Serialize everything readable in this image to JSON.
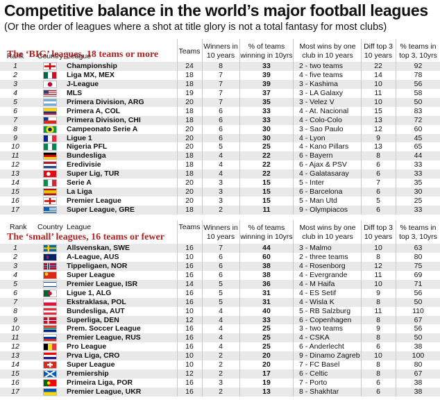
{
  "title": "Competitive balance in the world’s major football leagues",
  "subtitle": "(Or the order of leagues where a shot at title glory is not a total fantasy for most clubs)",
  "headers": {
    "rank": "Rank",
    "country": "Country",
    "league": "League",
    "teams": "Teams",
    "winners_1": "Winners in",
    "winners_2": "10 years",
    "pct_1": "% of teams",
    "pct_2": "winning in 10yrs",
    "most_1": "Most wins by one",
    "most_2": "club in 10 years",
    "diff_1": "Diff top 3",
    "diff_2": "10 years",
    "top3_1": "% teams in",
    "top3_2": "top 3, 10yrs"
  },
  "sections": [
    {
      "label": "The ‘BIG’ leagues, 18 teams or more",
      "rows": [
        {
          "rank": "1",
          "flag": "england",
          "league": "Championship",
          "teams": "24",
          "winners": "8",
          "pct": "33",
          "most": "2 - two teams",
          "diff": "22",
          "top3": "92"
        },
        {
          "rank": "2",
          "flag": "mexico",
          "league": "Liga MX, MEX",
          "teams": "18",
          "winners": "7",
          "pct": "39",
          "most": "4  -  five teams",
          "diff": "14",
          "top3": "78"
        },
        {
          "rank": "3",
          "flag": "japan",
          "league": "J-League",
          "teams": "18",
          "winners": "7",
          "pct": "39",
          "most": "3  -  Kashima",
          "diff": "10",
          "top3": "56"
        },
        {
          "rank": "4",
          "flag": "usa",
          "league": "MLS",
          "teams": "19",
          "winners": "7",
          "pct": "37",
          "most": "3  -  LA Galaxy",
          "diff": "11",
          "top3": "58"
        },
        {
          "rank": "5",
          "flag": "argentina",
          "league": "Primera Division, ARG",
          "teams": "20",
          "winners": "7",
          "pct": "35",
          "most": "3  -  Velez V",
          "diff": "10",
          "top3": "50"
        },
        {
          "rank": "6",
          "flag": "colombia",
          "league": "Primera A, COL",
          "teams": "18",
          "winners": "6",
          "pct": "33",
          "most": "4  -  At. Nacional",
          "diff": "15",
          "top3": "83"
        },
        {
          "rank": "7",
          "flag": "chile",
          "league": "Primera Division, CHI",
          "teams": "18",
          "winners": "6",
          "pct": "33",
          "most": "4  - Colo-Colo",
          "diff": "13",
          "top3": "72"
        },
        {
          "rank": "8",
          "flag": "brazil",
          "league": "Campeonato Serie A",
          "teams": "20",
          "winners": "6",
          "pct": "30",
          "most": "3  -  Sao Paulo",
          "diff": "12",
          "top3": "60"
        },
        {
          "rank": "9",
          "flag": "france",
          "league": "Ligue 1",
          "teams": "20",
          "winners": "6",
          "pct": "30",
          "most": "4  -  Lyon",
          "diff": "9",
          "top3": "45"
        },
        {
          "rank": "10",
          "flag": "nigeria",
          "league": "Nigeria PFL",
          "teams": "20",
          "winners": "5",
          "pct": "25",
          "most": "4  - Kano Pillars",
          "diff": "13",
          "top3": "65"
        },
        {
          "rank": "11",
          "flag": "germany",
          "league": "Bundesliga",
          "teams": "18",
          "winners": "4",
          "pct": "22",
          "most": "6  -  Bayern",
          "diff": "8",
          "top3": "44"
        },
        {
          "rank": "12",
          "flag": "netherlands",
          "league": "Eredivisie",
          "teams": "18",
          "winners": "4",
          "pct": "22",
          "most": "6 - Ajax & PSV",
          "diff": "6",
          "top3": "33"
        },
        {
          "rank": "13",
          "flag": "turkey",
          "league": "Super Lig, TUR",
          "teams": "18",
          "winners": "4",
          "pct": "22",
          "most": "4  - Galatasaray",
          "diff": "6",
          "top3": "33"
        },
        {
          "rank": "14",
          "flag": "italy",
          "league": "Serie A",
          "teams": "20",
          "winners": "3",
          "pct": "15",
          "most": "5 - Inter",
          "diff": "7",
          "top3": "35"
        },
        {
          "rank": "15",
          "flag": "spain",
          "league": "La Liga",
          "teams": "20",
          "winners": "3",
          "pct": "15",
          "most": "6 - Barcelona",
          "diff": "6",
          "top3": "30"
        },
        {
          "rank": "16",
          "flag": "england",
          "league": "Premier League",
          "teams": "20",
          "winners": "3",
          "pct": "15",
          "most": "5 -  Man Utd",
          "diff": "5",
          "top3": "25"
        },
        {
          "rank": "17",
          "flag": "greece",
          "league": "Super League, GRE",
          "teams": "18",
          "winners": "2",
          "pct": "11",
          "most": "9 - Olympiacos",
          "diff": "6",
          "top3": "33"
        }
      ]
    },
    {
      "label": "The ‘small’ leagues, 16 teams or fewer",
      "rows": [
        {
          "rank": "1",
          "flag": "sweden",
          "league": "Allsvenskan, SWE",
          "teams": "16",
          "winners": "7",
          "pct": "44",
          "most": "3  -  Malmo",
          "diff": "10",
          "top3": "63"
        },
        {
          "rank": "2",
          "flag": "australia",
          "league": "A-League, AUS",
          "teams": "10",
          "winners": "6",
          "pct": "60",
          "most": "2 - three teams",
          "diff": "8",
          "top3": "80"
        },
        {
          "rank": "3",
          "flag": "norway",
          "league": "Tippeligaen, NOR",
          "teams": "16",
          "winners": "6",
          "pct": "38",
          "most": "4  -  Rosenborg",
          "diff": "12",
          "top3": "75"
        },
        {
          "rank": "4",
          "flag": "china",
          "league": "Super League",
          "teams": "16",
          "winners": "6",
          "pct": "38",
          "most": "4  -  Evergrande",
          "diff": "11",
          "top3": "69"
        },
        {
          "rank": "5",
          "flag": "israel",
          "league": "Premier League, ISR",
          "teams": "14",
          "winners": "5",
          "pct": "36",
          "most": "4  -  M Haifa",
          "diff": "10",
          "top3": "71"
        },
        {
          "rank": "6",
          "flag": "algeria",
          "league": "Ligue 1, ALG",
          "teams": "16",
          "winners": "5",
          "pct": "31",
          "most": "4  -  ES Setif",
          "diff": "9",
          "top3": "56"
        },
        {
          "rank": "7",
          "flag": "poland",
          "league": "Ekstraklasa, POL",
          "teams": "16",
          "winners": "5",
          "pct": "31",
          "most": "4  -  Wisla K",
          "diff": "8",
          "top3": "50"
        },
        {
          "rank": "8",
          "flag": "austria",
          "league": "Bundesliga, AUT",
          "teams": "10",
          "winners": "4",
          "pct": "40",
          "most": "5 - RB Salzburg",
          "diff": "11",
          "top3": "110"
        },
        {
          "rank": "9",
          "flag": "denmark",
          "league": "Superliga, DEN",
          "teams": "12",
          "winners": "4",
          "pct": "33",
          "most": "6 - Copenhagen",
          "diff": "8",
          "top3": "67"
        },
        {
          "rank": "10",
          "flag": "southafrica",
          "league": "Prem. Soccer League",
          "teams": "16",
          "winners": "4",
          "pct": "25",
          "most": "3  -  two teams",
          "diff": "9",
          "top3": "56"
        },
        {
          "rank": "11",
          "flag": "russia",
          "league": "Premier League, RUS",
          "teams": "16",
          "winners": "4",
          "pct": "25",
          "most": "4  -  CSKA",
          "diff": "8",
          "top3": "50"
        },
        {
          "rank": "12",
          "flag": "belgium",
          "league": "Pro League",
          "teams": "16",
          "winners": "4",
          "pct": "25",
          "most": "6 - Anderlecht",
          "diff": "6",
          "top3": "38"
        },
        {
          "rank": "13",
          "flag": "croatia",
          "league": "Prva Liga, CRO",
          "teams": "10",
          "winners": "2",
          "pct": "20",
          "most": "9 - Dinamo Zagreb",
          "diff": "10",
          "top3": "100"
        },
        {
          "rank": "14",
          "flag": "switzerland",
          "league": "Super League",
          "teams": "10",
          "winners": "2",
          "pct": "20",
          "most": "7 - FC Basel",
          "diff": "8",
          "top3": "80"
        },
        {
          "rank": "15",
          "flag": "scotland",
          "league": "Premiership",
          "teams": "12",
          "winners": "2",
          "pct": "17",
          "most": "6 - Celtic",
          "diff": "8",
          "top3": "67"
        },
        {
          "rank": "16",
          "flag": "portugal",
          "league": "Primeira Liga, POR",
          "teams": "16",
          "winners": "3",
          "pct": "19",
          "most": "7 - Porto",
          "diff": "6",
          "top3": "38"
        },
        {
          "rank": "17",
          "flag": "ukraine",
          "league": "Premier League, UKR",
          "teams": "16",
          "winners": "2",
          "pct": "13",
          "most": "8 - Shakhtar",
          "diff": "6",
          "top3": "38"
        }
      ]
    }
  ],
  "colors": {
    "section_label": "#b22222",
    "row_alt": "#e9e9e9",
    "grid": "#c8c8c8"
  }
}
